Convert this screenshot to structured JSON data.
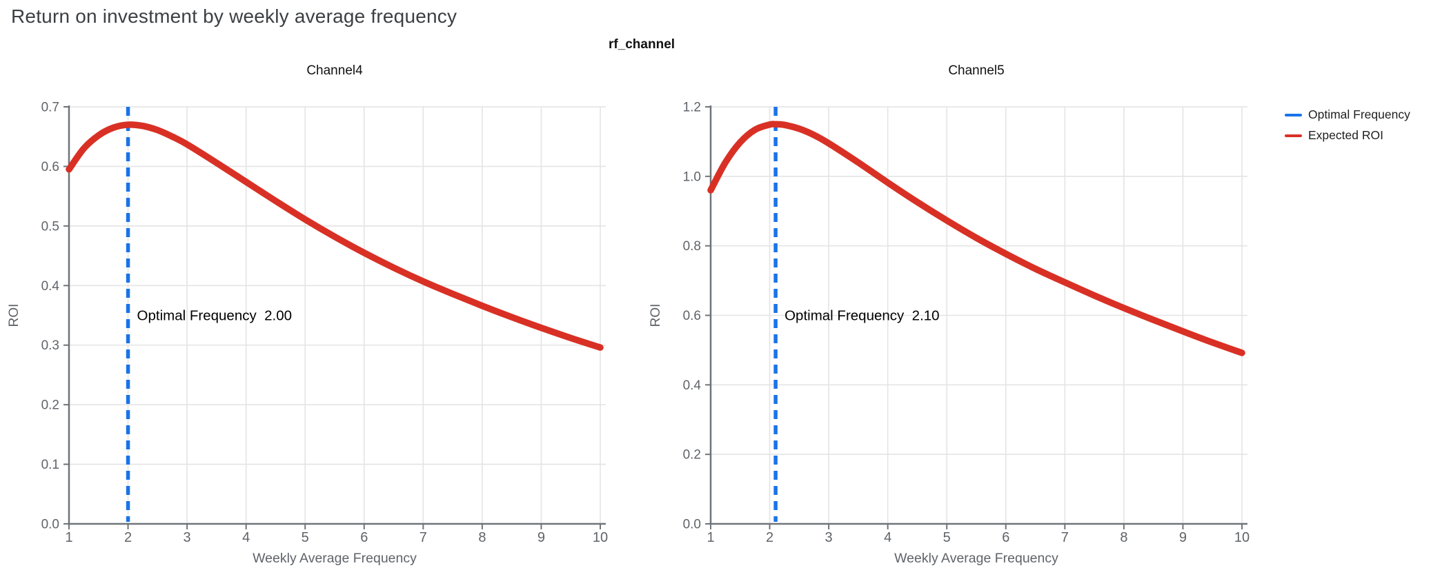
{
  "page": {
    "title": "Return on investment by weekly average frequency"
  },
  "facet": {
    "title": "rf_channel"
  },
  "legend": {
    "position": "top-right-outside",
    "items": [
      {
        "label": "Optimal Frequency",
        "color": "#1a73e8"
      },
      {
        "label": "Expected ROI",
        "color": "#d93025"
      }
    ]
  },
  "colors": {
    "roi_line": "#d93025",
    "optimal_line": "#1a73e8",
    "grid": "#e4e4e4",
    "axis": "#6f7479",
    "tick_text": "#5f6368",
    "page_title_text": "#3c4043",
    "annotation_text": "#000000",
    "subplot_title_text": "#111111"
  },
  "chart_data": [
    {
      "type": "line",
      "title": "Channel4",
      "xlabel": "Weekly Average Frequency",
      "ylabel": "ROI",
      "xlim": [
        1,
        10.1
      ],
      "ylim": [
        0,
        0.7
      ],
      "xticks": [
        1,
        2,
        3,
        4,
        5,
        6,
        7,
        8,
        9,
        10
      ],
      "yticks": [
        0.0,
        0.1,
        0.2,
        0.3,
        0.4,
        0.5,
        0.6,
        0.7
      ],
      "grid": true,
      "optimal_frequency": 2.0,
      "annotation": {
        "label": "Optimal Frequency",
        "value": "2.00"
      },
      "series": [
        {
          "name": "Expected ROI",
          "x": [
            1,
            1.25,
            1.5,
            1.75,
            2,
            2.25,
            2.5,
            2.75,
            3,
            3.5,
            4,
            4.5,
            5,
            5.5,
            6,
            6.5,
            7,
            7.5,
            8,
            8.5,
            9,
            9.5,
            10
          ],
          "y": [
            0.595,
            0.63,
            0.652,
            0.665,
            0.67,
            0.668,
            0.661,
            0.65,
            0.637,
            0.606,
            0.574,
            0.542,
            0.511,
            0.482,
            0.455,
            0.43,
            0.407,
            0.386,
            0.366,
            0.347,
            0.329,
            0.312,
            0.296
          ]
        }
      ]
    },
    {
      "type": "line",
      "title": "Channel5",
      "xlabel": "Weekly Average Frequency",
      "ylabel": "ROI",
      "xlim": [
        1,
        10.1
      ],
      "ylim": [
        0,
        1.2
      ],
      "xticks": [
        1,
        2,
        3,
        4,
        5,
        6,
        7,
        8,
        9,
        10
      ],
      "yticks": [
        0.0,
        0.2,
        0.4,
        0.6,
        0.8,
        1.0,
        1.2
      ],
      "grid": true,
      "optimal_frequency": 2.1,
      "annotation": {
        "label": "Optimal Frequency",
        "value": "2.10"
      },
      "series": [
        {
          "name": "Expected ROI",
          "x": [
            1,
            1.25,
            1.5,
            1.75,
            2,
            2.1,
            2.25,
            2.5,
            2.75,
            3,
            3.5,
            4,
            4.5,
            5,
            5.5,
            6,
            6.5,
            7,
            7.5,
            8,
            8.5,
            9,
            9.5,
            10
          ],
          "y": [
            0.96,
            1.04,
            1.098,
            1.134,
            1.149,
            1.15,
            1.148,
            1.137,
            1.119,
            1.095,
            1.04,
            0.982,
            0.926,
            0.873,
            0.823,
            0.777,
            0.734,
            0.695,
            0.657,
            0.621,
            0.587,
            0.554,
            0.522,
            0.492
          ]
        }
      ]
    }
  ]
}
